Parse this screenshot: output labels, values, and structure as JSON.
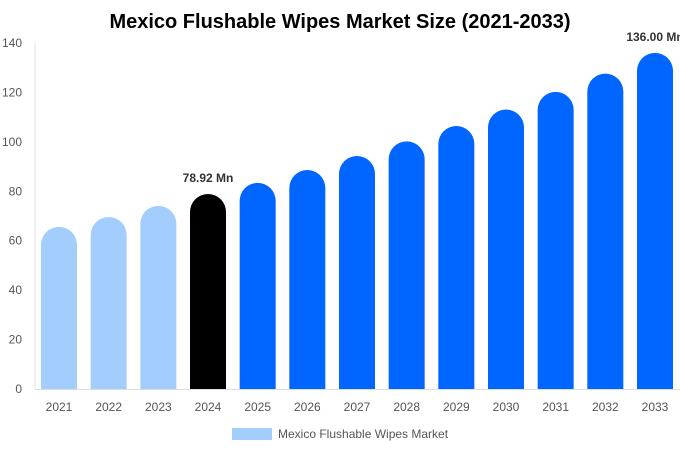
{
  "chart_data": {
    "type": "bar",
    "title": "Mexico Flushable Wipes Market Size (2021-2033)",
    "categories": [
      "2021",
      "2022",
      "2023",
      "2024",
      "2025",
      "2026",
      "2027",
      "2028",
      "2029",
      "2030",
      "2031",
      "2032",
      "2033"
    ],
    "series": [
      {
        "name": "Mexico Flushable Wipes Market",
        "values": [
          65.6,
          69.6,
          74.1,
          78.92,
          83.4,
          88.6,
          94.3,
          100.2,
          106.4,
          113.1,
          120.2,
          127.6,
          136.0
        ]
      }
    ],
    "data_labels": {
      "3": "78.92 Mn",
      "12": "136.00 Mn"
    },
    "ylim": [
      0,
      140
    ],
    "yticks": [
      0,
      20,
      40,
      60,
      80,
      100,
      120,
      140
    ],
    "grid": false,
    "legend": "bottom",
    "colors": {
      "historical": "#a3cdfd",
      "current": "#000000",
      "forecast": "#0066ff"
    },
    "xlabel": "",
    "ylabel": ""
  }
}
